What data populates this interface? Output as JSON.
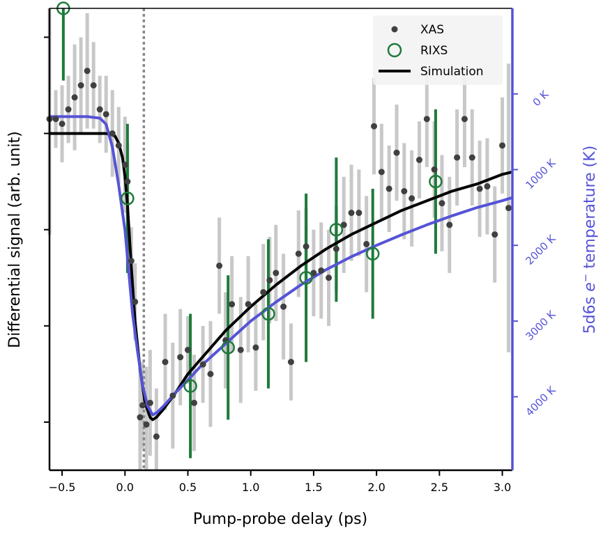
{
  "chart_data": {
    "type": "scatter",
    "xlabel": "Pump-probe delay (ps)",
    "ylabel": "Differential signal (arb. unit)",
    "y2label_prefix": "5d6s ",
    "y2label_e": "e",
    "y2label_sup": "−",
    "y2label_suffix": " temperature (K)",
    "xlim": [
      -0.6,
      3.08
    ],
    "ylim": [
      -1.4,
      0.52
    ],
    "y2lim": [
      4970,
      -1130
    ],
    "xticks": [
      -0.5,
      0.0,
      0.5,
      1.0,
      1.5,
      2.0,
      2.5,
      3.0
    ],
    "xtick_labels": [
      "−0.5",
      "0.0",
      "0.5",
      "1.0",
      "1.5",
      "2.0",
      "2.5",
      "3.0"
    ],
    "yticks": [
      0.4,
      0.0,
      -0.4,
      -0.8,
      -1.2
    ],
    "y2ticks": [
      0,
      1000,
      2000,
      3000,
      4000
    ],
    "y2tick_labels": [
      "0 K",
      "1000 K",
      "2000 K",
      "3000 K",
      "4000 K"
    ],
    "time_zero_marker": 0.15,
    "colors": {
      "xas": "#404040",
      "xas_err": "#c8c8c8",
      "rixs": "#1e7a3a",
      "simulation": "#000000",
      "temperature": "#5553d6",
      "marker_line": "#8a8a8a"
    },
    "legend": {
      "position": "top-right",
      "entries": [
        "XAS",
        "RIXS",
        "Simulation"
      ]
    },
    "series": [
      {
        "name": "XAS",
        "kind": "points_with_errorbars",
        "x": [
          -0.6,
          -0.55,
          -0.5,
          -0.45,
          -0.4,
          -0.35,
          -0.3,
          -0.25,
          -0.2,
          -0.15,
          -0.1,
          -0.05,
          0.0,
          0.02,
          0.05,
          0.08,
          0.12,
          0.14,
          0.17,
          0.2,
          0.25,
          0.32,
          0.38,
          0.44,
          0.5,
          0.55,
          0.62,
          0.68,
          0.75,
          0.8,
          0.85,
          0.92,
          0.98,
          1.04,
          1.1,
          1.15,
          1.2,
          1.26,
          1.32,
          1.38,
          1.44,
          1.5,
          1.56,
          1.62,
          1.68,
          1.74,
          1.8,
          1.86,
          1.92,
          1.98,
          2.04,
          2.1,
          2.16,
          2.22,
          2.28,
          2.34,
          2.4,
          2.46,
          2.52,
          2.58,
          2.64,
          2.7,
          2.76,
          2.82,
          2.88,
          2.94,
          3.0,
          3.05
        ],
        "y": [
          0.06,
          0.06,
          0.04,
          0.1,
          0.15,
          0.2,
          0.26,
          0.2,
          0.1,
          0.08,
          0.0,
          -0.05,
          -0.13,
          -0.2,
          -0.53,
          -0.7,
          -1.18,
          -1.13,
          -1.21,
          -1.12,
          -1.26,
          -0.95,
          -1.09,
          -0.93,
          -0.9,
          -1.12,
          -0.96,
          -1.0,
          -0.55,
          -0.86,
          -0.71,
          -0.9,
          -0.71,
          -0.89,
          -0.66,
          -0.61,
          -0.58,
          -0.72,
          -0.95,
          -0.5,
          -0.47,
          -0.58,
          -0.57,
          -0.6,
          -0.48,
          -0.38,
          -0.33,
          -0.33,
          -0.46,
          0.03,
          -0.16,
          -0.23,
          -0.08,
          -0.24,
          -0.27,
          -0.11,
          0.06,
          -0.15,
          -0.29,
          -0.38,
          -0.1,
          0.06,
          -0.1,
          -0.23,
          -0.22,
          -0.42,
          -0.05,
          -0.31
        ],
        "err": [
          0.48,
          0.12,
          0.16,
          0.14,
          0.22,
          0.2,
          0.24,
          0.18,
          0.14,
          0.16,
          0.18,
          0.16,
          0.2,
          0.16,
          0.14,
          0.16,
          0.22,
          0.18,
          0.24,
          0.22,
          0.2,
          0.2,
          0.22,
          0.2,
          0.14,
          0.2,
          0.16,
          0.22,
          0.2,
          0.2,
          0.2,
          0.22,
          0.2,
          0.18,
          0.2,
          0.18,
          0.2,
          0.22,
          0.16,
          0.18,
          0.16,
          0.18,
          0.2,
          0.2,
          0.18,
          0.2,
          0.2,
          0.18,
          0.2,
          0.2,
          0.2,
          0.18,
          0.2,
          0.2,
          0.2,
          0.16,
          0.2,
          0.2,
          0.2,
          0.2,
          0.2,
          0.2,
          0.2,
          0.2,
          0.2,
          0.2,
          0.2,
          0.6
        ]
      },
      {
        "name": "RIXS",
        "kind": "open_circles_with_errorbars",
        "x": [
          -0.49,
          0.02,
          0.52,
          0.82,
          1.14,
          1.44,
          1.68,
          1.97,
          2.47
        ],
        "y": [
          0.52,
          -0.27,
          -1.05,
          -0.89,
          -0.75,
          -0.6,
          -0.4,
          -0.5,
          -0.2
        ],
        "err": [
          0.3,
          0.31,
          0.3,
          0.3,
          0.31,
          0.35,
          0.3,
          0.27,
          0.3
        ]
      },
      {
        "name": "Simulation",
        "kind": "line",
        "x": [
          -0.6,
          -0.3,
          -0.15,
          -0.08,
          -0.05,
          -0.02,
          0.0,
          0.02,
          0.05,
          0.08,
          0.12,
          0.16,
          0.2,
          0.22,
          0.25,
          0.3,
          0.4,
          0.5,
          0.6,
          0.8,
          1.0,
          1.2,
          1.4,
          1.6,
          1.8,
          2.0,
          2.2,
          2.4,
          2.6,
          2.8,
          3.0,
          3.08
        ],
        "y": [
          0.0,
          0.0,
          0.0,
          -0.01,
          -0.04,
          -0.1,
          -0.18,
          -0.3,
          -0.55,
          -0.78,
          -0.98,
          -1.12,
          -1.18,
          -1.19,
          -1.18,
          -1.15,
          -1.08,
          -1.0,
          -0.94,
          -0.82,
          -0.72,
          -0.63,
          -0.55,
          -0.48,
          -0.42,
          -0.37,
          -0.32,
          -0.28,
          -0.24,
          -0.21,
          -0.17,
          -0.16
        ]
      },
      {
        "name": "temperature",
        "kind": "line",
        "axis": "right",
        "x": [
          -0.6,
          -0.3,
          -0.2,
          -0.15,
          -0.1,
          -0.05,
          0.0,
          0.03,
          0.06,
          0.1,
          0.14,
          0.18,
          0.22,
          0.26,
          0.32,
          0.4,
          0.5,
          0.6,
          0.8,
          1.0,
          1.2,
          1.4,
          1.6,
          1.8,
          2.0,
          2.2,
          2.4,
          2.6,
          2.8,
          3.0,
          3.08
        ],
        "y": [
          300,
          300,
          320,
          400,
          700,
          1200,
          1800,
          2350,
          2900,
          3400,
          3850,
          4120,
          4240,
          4200,
          4100,
          3950,
          3780,
          3600,
          3300,
          3000,
          2750,
          2520,
          2320,
          2150,
          2000,
          1860,
          1730,
          1610,
          1500,
          1410,
          1370
        ]
      }
    ]
  }
}
